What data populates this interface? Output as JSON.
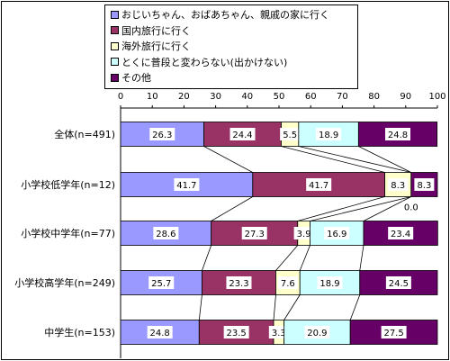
{
  "chart_data": {
    "type": "bar",
    "orientation": "horizontal",
    "stacked": true,
    "normalized": true,
    "categories": [
      "全体(n=491)",
      "小学校低学年(n=12)",
      "小学校中学年(n=77)",
      "小学校高学年(n=249)",
      "中学生(n=153)"
    ],
    "series": [
      {
        "name": "おじいちゃん、おばあちゃん、親戚の家に行く",
        "color": "#9999ff",
        "values": [
          26.3,
          41.7,
          28.6,
          25.7,
          24.8
        ]
      },
      {
        "name": "国内旅行に行く",
        "color": "#993366",
        "values": [
          24.4,
          41.7,
          27.3,
          23.3,
          23.5
        ]
      },
      {
        "name": "海外旅行に行く",
        "color": "#ffffcc",
        "values": [
          5.5,
          8.3,
          3.9,
          7.6,
          3.3
        ]
      },
      {
        "name": "とくに普段と変わらない(出かけない)",
        "color": "#ccffff",
        "values": [
          18.9,
          0.0,
          16.9,
          18.9,
          20.9
        ]
      },
      {
        "name": "その他",
        "color": "#660066",
        "values": [
          24.8,
          8.3,
          23.4,
          24.5,
          27.5
        ]
      }
    ],
    "xlim": [
      0,
      100
    ],
    "xticks": [
      "0",
      "10",
      "20",
      "30",
      "40",
      "50",
      "60",
      "70",
      "80",
      "90",
      "100"
    ],
    "legend_position": "top",
    "series_lines": true,
    "extra_labels": [
      {
        "category_index": 1,
        "text": "0.0"
      }
    ]
  }
}
